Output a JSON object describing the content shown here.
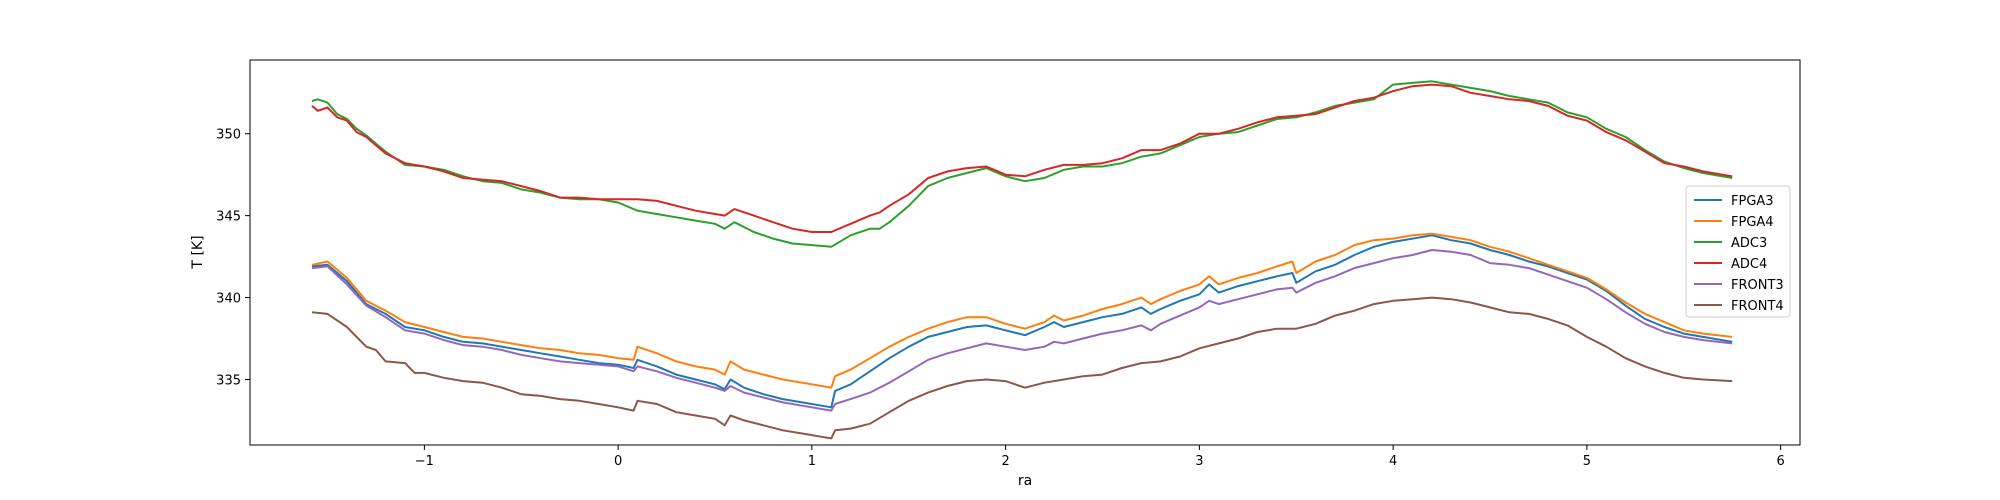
{
  "chart_data": {
    "type": "line",
    "title": "",
    "xlabel": "ra",
    "ylabel": "T [K]",
    "xlim": [
      -1.9,
      6.1
    ],
    "ylim": [
      331.0,
      354.5
    ],
    "xticks": [
      -1,
      0,
      1,
      2,
      3,
      4,
      5,
      6
    ],
    "xtick_labels": [
      "−1",
      "0",
      "1",
      "2",
      "3",
      "4",
      "5",
      "6"
    ],
    "yticks": [
      335,
      340,
      345,
      350
    ],
    "ytick_labels": [
      "335",
      "340",
      "345",
      "350"
    ],
    "grid": false,
    "legend_position": "center-right",
    "series": [
      {
        "name": "FPGA3",
        "color": "#1f77b4",
        "x": [
          -1.58,
          -1.5,
          -1.4,
          -1.3,
          -1.2,
          -1.1,
          -1.0,
          -0.9,
          -0.8,
          -0.7,
          -0.6,
          -0.5,
          -0.4,
          -0.3,
          -0.2,
          -0.1,
          0.0,
          0.08,
          0.1,
          0.2,
          0.3,
          0.4,
          0.5,
          0.55,
          0.58,
          0.65,
          0.75,
          0.85,
          0.95,
          1.05,
          1.1,
          1.12,
          1.2,
          1.3,
          1.4,
          1.5,
          1.6,
          1.7,
          1.8,
          1.9,
          2.0,
          2.1,
          2.2,
          2.25,
          2.3,
          2.4,
          2.5,
          2.6,
          2.7,
          2.75,
          2.8,
          2.9,
          3.0,
          3.05,
          3.1,
          3.2,
          3.3,
          3.4,
          3.48,
          3.5,
          3.6,
          3.7,
          3.8,
          3.9,
          4.0,
          4.1,
          4.2,
          4.3,
          4.4,
          4.5,
          4.6,
          4.7,
          4.8,
          4.9,
          5.0,
          5.1,
          5.2,
          5.3,
          5.4,
          5.5,
          5.6,
          5.75
        ],
        "values": [
          341.9,
          342.0,
          341.0,
          339.6,
          339.0,
          338.2,
          338.0,
          337.6,
          337.3,
          337.2,
          337.0,
          336.8,
          336.6,
          336.4,
          336.2,
          336.0,
          335.9,
          335.7,
          336.2,
          335.8,
          335.3,
          335.0,
          334.7,
          334.4,
          335.0,
          334.5,
          334.1,
          333.8,
          333.6,
          333.4,
          333.3,
          334.3,
          334.7,
          335.5,
          336.3,
          337.0,
          337.6,
          337.9,
          338.2,
          338.3,
          338.0,
          337.7,
          338.2,
          338.5,
          338.2,
          338.5,
          338.8,
          339.0,
          339.4,
          339.0,
          339.3,
          339.8,
          340.2,
          340.8,
          340.3,
          340.7,
          341.0,
          341.3,
          341.5,
          340.9,
          341.6,
          342.0,
          342.6,
          343.1,
          343.4,
          343.6,
          343.8,
          343.5,
          343.3,
          342.9,
          342.6,
          342.2,
          341.9,
          341.5,
          341.1,
          340.4,
          339.5,
          338.7,
          338.2,
          337.8,
          337.6,
          337.3
        ]
      },
      {
        "name": "FPGA4",
        "color": "#ff7f0e",
        "x": [
          -1.58,
          -1.5,
          -1.4,
          -1.3,
          -1.2,
          -1.1,
          -1.0,
          -0.9,
          -0.8,
          -0.7,
          -0.6,
          -0.5,
          -0.4,
          -0.3,
          -0.2,
          -0.1,
          0.0,
          0.08,
          0.1,
          0.2,
          0.3,
          0.4,
          0.5,
          0.55,
          0.58,
          0.65,
          0.75,
          0.85,
          0.95,
          1.05,
          1.1,
          1.12,
          1.2,
          1.3,
          1.4,
          1.5,
          1.6,
          1.7,
          1.8,
          1.9,
          2.0,
          2.1,
          2.2,
          2.25,
          2.3,
          2.4,
          2.5,
          2.6,
          2.7,
          2.75,
          2.8,
          2.9,
          3.0,
          3.05,
          3.1,
          3.2,
          3.3,
          3.4,
          3.48,
          3.5,
          3.6,
          3.7,
          3.8,
          3.9,
          4.0,
          4.1,
          4.2,
          4.3,
          4.4,
          4.5,
          4.6,
          4.7,
          4.8,
          4.9,
          5.0,
          5.1,
          5.2,
          5.3,
          5.4,
          5.5,
          5.6,
          5.75
        ],
        "values": [
          342.0,
          342.2,
          341.2,
          339.8,
          339.2,
          338.5,
          338.2,
          337.9,
          337.6,
          337.5,
          337.3,
          337.1,
          336.9,
          336.8,
          336.6,
          336.5,
          336.3,
          336.2,
          337.0,
          336.6,
          336.1,
          335.8,
          335.6,
          335.3,
          336.1,
          335.6,
          335.3,
          335.0,
          334.8,
          334.6,
          334.5,
          335.2,
          335.6,
          336.3,
          337.0,
          337.6,
          338.1,
          338.5,
          338.8,
          338.8,
          338.4,
          338.1,
          338.5,
          338.9,
          338.6,
          338.9,
          339.3,
          339.6,
          340.0,
          339.6,
          339.9,
          340.4,
          340.8,
          341.3,
          340.8,
          341.2,
          341.5,
          341.9,
          342.2,
          341.5,
          342.2,
          342.6,
          343.2,
          343.5,
          343.6,
          343.8,
          343.9,
          343.7,
          343.5,
          343.1,
          342.8,
          342.4,
          342.0,
          341.6,
          341.2,
          340.5,
          339.7,
          339.0,
          338.5,
          338.0,
          337.8,
          337.6
        ]
      },
      {
        "name": "ADC3",
        "color": "#2ca02c",
        "x": [
          -1.58,
          -1.55,
          -1.5,
          -1.45,
          -1.4,
          -1.35,
          -1.3,
          -1.25,
          -1.2,
          -1.1,
          -1.0,
          -0.9,
          -0.8,
          -0.7,
          -0.6,
          -0.5,
          -0.4,
          -0.3,
          -0.2,
          -0.1,
          0.0,
          0.1,
          0.2,
          0.3,
          0.4,
          0.5,
          0.55,
          0.6,
          0.7,
          0.8,
          0.9,
          1.0,
          1.1,
          1.2,
          1.3,
          1.35,
          1.4,
          1.5,
          1.6,
          1.7,
          1.8,
          1.9,
          2.0,
          2.1,
          2.2,
          2.3,
          2.4,
          2.5,
          2.6,
          2.7,
          2.8,
          2.9,
          3.0,
          3.1,
          3.2,
          3.3,
          3.4,
          3.5,
          3.6,
          3.7,
          3.8,
          3.9,
          4.0,
          4.1,
          4.2,
          4.3,
          4.4,
          4.5,
          4.6,
          4.7,
          4.8,
          4.9,
          5.0,
          5.1,
          5.2,
          5.3,
          5.4,
          5.5,
          5.6,
          5.75
        ],
        "values": [
          352.0,
          352.1,
          351.9,
          351.2,
          350.9,
          350.3,
          349.9,
          349.4,
          348.9,
          348.1,
          348.0,
          347.8,
          347.4,
          347.1,
          347.0,
          346.6,
          346.4,
          346.1,
          346.0,
          346.0,
          345.8,
          345.3,
          345.1,
          344.9,
          344.7,
          344.5,
          344.2,
          344.6,
          344.0,
          343.6,
          343.3,
          343.2,
          343.1,
          343.8,
          344.2,
          344.2,
          344.6,
          345.6,
          346.8,
          347.3,
          347.6,
          347.9,
          347.4,
          347.1,
          347.3,
          347.8,
          348.0,
          348.0,
          348.2,
          348.6,
          348.8,
          349.3,
          349.8,
          350.0,
          350.1,
          350.5,
          350.9,
          351.0,
          351.3,
          351.7,
          351.9,
          352.1,
          353.0,
          353.1,
          353.2,
          353.0,
          352.8,
          352.6,
          352.3,
          352.1,
          351.9,
          351.3,
          351.0,
          350.3,
          349.8,
          349.0,
          348.3,
          347.9,
          347.6,
          347.3
        ]
      },
      {
        "name": "ADC4",
        "color": "#d62728",
        "x": [
          -1.58,
          -1.55,
          -1.5,
          -1.45,
          -1.4,
          -1.35,
          -1.3,
          -1.25,
          -1.2,
          -1.1,
          -1.0,
          -0.9,
          -0.8,
          -0.7,
          -0.6,
          -0.5,
          -0.4,
          -0.3,
          -0.2,
          -0.1,
          0.0,
          0.1,
          0.2,
          0.3,
          0.4,
          0.5,
          0.55,
          0.6,
          0.7,
          0.8,
          0.9,
          1.0,
          1.1,
          1.2,
          1.3,
          1.35,
          1.4,
          1.5,
          1.6,
          1.7,
          1.8,
          1.9,
          2.0,
          2.1,
          2.2,
          2.3,
          2.4,
          2.5,
          2.6,
          2.7,
          2.8,
          2.9,
          3.0,
          3.1,
          3.2,
          3.3,
          3.4,
          3.5,
          3.6,
          3.7,
          3.8,
          3.9,
          4.0,
          4.1,
          4.2,
          4.3,
          4.4,
          4.5,
          4.6,
          4.7,
          4.8,
          4.9,
          5.0,
          5.1,
          5.2,
          5.3,
          5.4,
          5.5,
          5.6,
          5.75
        ],
        "values": [
          351.7,
          351.4,
          351.6,
          351.0,
          350.8,
          350.1,
          349.8,
          349.3,
          348.8,
          348.2,
          348.0,
          347.7,
          347.3,
          347.2,
          347.1,
          346.8,
          346.5,
          346.1,
          346.1,
          346.0,
          346.0,
          346.0,
          345.9,
          345.6,
          345.3,
          345.1,
          345.0,
          345.4,
          345.0,
          344.6,
          344.2,
          344.0,
          344.0,
          344.5,
          345.0,
          345.2,
          345.6,
          346.3,
          347.3,
          347.7,
          347.9,
          348.0,
          347.5,
          347.4,
          347.8,
          348.1,
          348.1,
          348.2,
          348.5,
          349.0,
          349.0,
          349.4,
          350.0,
          350.0,
          350.3,
          350.7,
          351.0,
          351.1,
          351.2,
          351.6,
          352.0,
          352.2,
          352.6,
          352.9,
          353.0,
          352.9,
          352.5,
          352.3,
          352.1,
          352.0,
          351.7,
          351.1,
          350.8,
          350.1,
          349.6,
          348.9,
          348.2,
          348.0,
          347.7,
          347.4
        ]
      },
      {
        "name": "FRONT3",
        "color": "#9467bd",
        "x": [
          -1.58,
          -1.5,
          -1.4,
          -1.3,
          -1.2,
          -1.1,
          -1.0,
          -0.9,
          -0.8,
          -0.7,
          -0.6,
          -0.5,
          -0.4,
          -0.3,
          -0.2,
          -0.1,
          0.0,
          0.08,
          0.1,
          0.2,
          0.3,
          0.4,
          0.5,
          0.55,
          0.58,
          0.65,
          0.75,
          0.85,
          0.95,
          1.05,
          1.1,
          1.12,
          1.2,
          1.3,
          1.4,
          1.5,
          1.6,
          1.7,
          1.8,
          1.9,
          2.0,
          2.1,
          2.2,
          2.25,
          2.3,
          2.4,
          2.5,
          2.6,
          2.7,
          2.75,
          2.8,
          2.9,
          3.0,
          3.05,
          3.1,
          3.2,
          3.3,
          3.4,
          3.48,
          3.5,
          3.6,
          3.7,
          3.8,
          3.9,
          4.0,
          4.1,
          4.2,
          4.3,
          4.4,
          4.5,
          4.6,
          4.7,
          4.8,
          4.9,
          5.0,
          5.1,
          5.2,
          5.3,
          5.4,
          5.5,
          5.6,
          5.75
        ],
        "values": [
          341.8,
          341.9,
          340.8,
          339.5,
          338.8,
          338.0,
          337.8,
          337.4,
          337.1,
          337.0,
          336.8,
          336.5,
          336.3,
          336.1,
          336.0,
          335.9,
          335.8,
          335.5,
          335.8,
          335.5,
          335.1,
          334.8,
          334.5,
          334.3,
          334.6,
          334.2,
          333.9,
          333.6,
          333.4,
          333.2,
          333.1,
          333.5,
          333.8,
          334.2,
          334.8,
          335.5,
          336.2,
          336.6,
          336.9,
          337.2,
          337.0,
          336.8,
          337.0,
          337.3,
          337.2,
          337.5,
          337.8,
          338.0,
          338.3,
          338.0,
          338.4,
          338.9,
          339.4,
          339.8,
          339.6,
          339.9,
          340.2,
          340.5,
          340.6,
          340.3,
          340.9,
          341.3,
          341.8,
          342.1,
          342.4,
          342.6,
          342.9,
          342.8,
          342.6,
          342.1,
          342.0,
          341.8,
          341.4,
          341.0,
          340.6,
          339.9,
          339.1,
          338.4,
          337.9,
          337.6,
          337.4,
          337.2
        ]
      },
      {
        "name": "FRONT4",
        "color": "#8c564b",
        "x": [
          -1.58,
          -1.5,
          -1.4,
          -1.35,
          -1.3,
          -1.25,
          -1.2,
          -1.1,
          -1.05,
          -1.0,
          -0.9,
          -0.8,
          -0.7,
          -0.6,
          -0.5,
          -0.4,
          -0.3,
          -0.2,
          -0.1,
          0.0,
          0.08,
          0.1,
          0.2,
          0.3,
          0.4,
          0.5,
          0.55,
          0.58,
          0.65,
          0.75,
          0.85,
          0.95,
          1.05,
          1.1,
          1.12,
          1.2,
          1.3,
          1.4,
          1.5,
          1.6,
          1.7,
          1.8,
          1.9,
          2.0,
          2.1,
          2.2,
          2.3,
          2.4,
          2.5,
          2.6,
          2.7,
          2.8,
          2.9,
          3.0,
          3.1,
          3.2,
          3.3,
          3.4,
          3.5,
          3.6,
          3.7,
          3.8,
          3.9,
          4.0,
          4.1,
          4.2,
          4.3,
          4.4,
          4.5,
          4.6,
          4.7,
          4.8,
          4.9,
          5.0,
          5.1,
          5.2,
          5.3,
          5.4,
          5.5,
          5.6,
          5.75
        ],
        "values": [
          339.1,
          339.0,
          338.2,
          337.6,
          337.0,
          336.8,
          336.1,
          336.0,
          335.4,
          335.4,
          335.1,
          334.9,
          334.8,
          334.5,
          334.1,
          334.0,
          333.8,
          333.7,
          333.5,
          333.3,
          333.1,
          333.7,
          333.5,
          333.0,
          332.8,
          332.6,
          332.2,
          332.8,
          332.5,
          332.2,
          331.9,
          331.7,
          331.5,
          331.4,
          331.9,
          332.0,
          332.3,
          333.0,
          333.7,
          334.2,
          334.6,
          334.9,
          335.0,
          334.9,
          334.5,
          334.8,
          335.0,
          335.2,
          335.3,
          335.7,
          336.0,
          336.1,
          336.4,
          336.9,
          337.2,
          337.5,
          337.9,
          338.1,
          338.1,
          338.4,
          338.9,
          339.2,
          339.6,
          339.8,
          339.9,
          340.0,
          339.9,
          339.7,
          339.4,
          339.1,
          339.0,
          338.7,
          338.3,
          337.6,
          337.0,
          336.3,
          335.8,
          335.4,
          335.1,
          335.0,
          334.9
        ]
      }
    ]
  }
}
